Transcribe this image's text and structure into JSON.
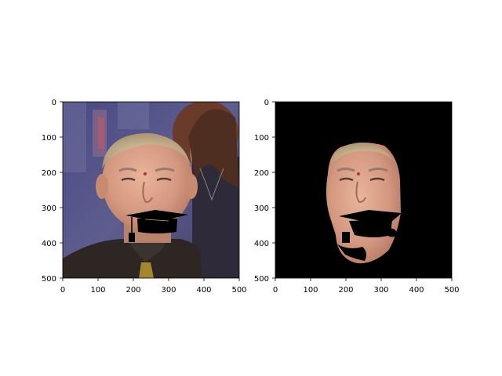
{
  "panels": [
    {
      "name": "original-photo-panel",
      "content": "Photo of a smiling man with a black graduation-cap overlay drawn over his mouth and chin",
      "x_ticks": [
        "0",
        "100",
        "200",
        "300",
        "400",
        "500"
      ],
      "y_ticks": [
        "0",
        "100",
        "200",
        "300",
        "400",
        "500"
      ]
    },
    {
      "name": "masked-face-panel",
      "content": "Same face segmented on a black background, with the cap region removed",
      "x_ticks": [
        "0",
        "100",
        "200",
        "300",
        "400",
        "500"
      ],
      "y_ticks": [
        "0",
        "100",
        "200",
        "300",
        "400",
        "500"
      ]
    }
  ],
  "colors": {
    "background": "#ffffff",
    "axis": "#000000",
    "skin": "#d59a7f",
    "hair": "#c9b48e",
    "bg_blue": "#4d4d86",
    "suit": "#2d2622",
    "tie": "#a4862f"
  }
}
